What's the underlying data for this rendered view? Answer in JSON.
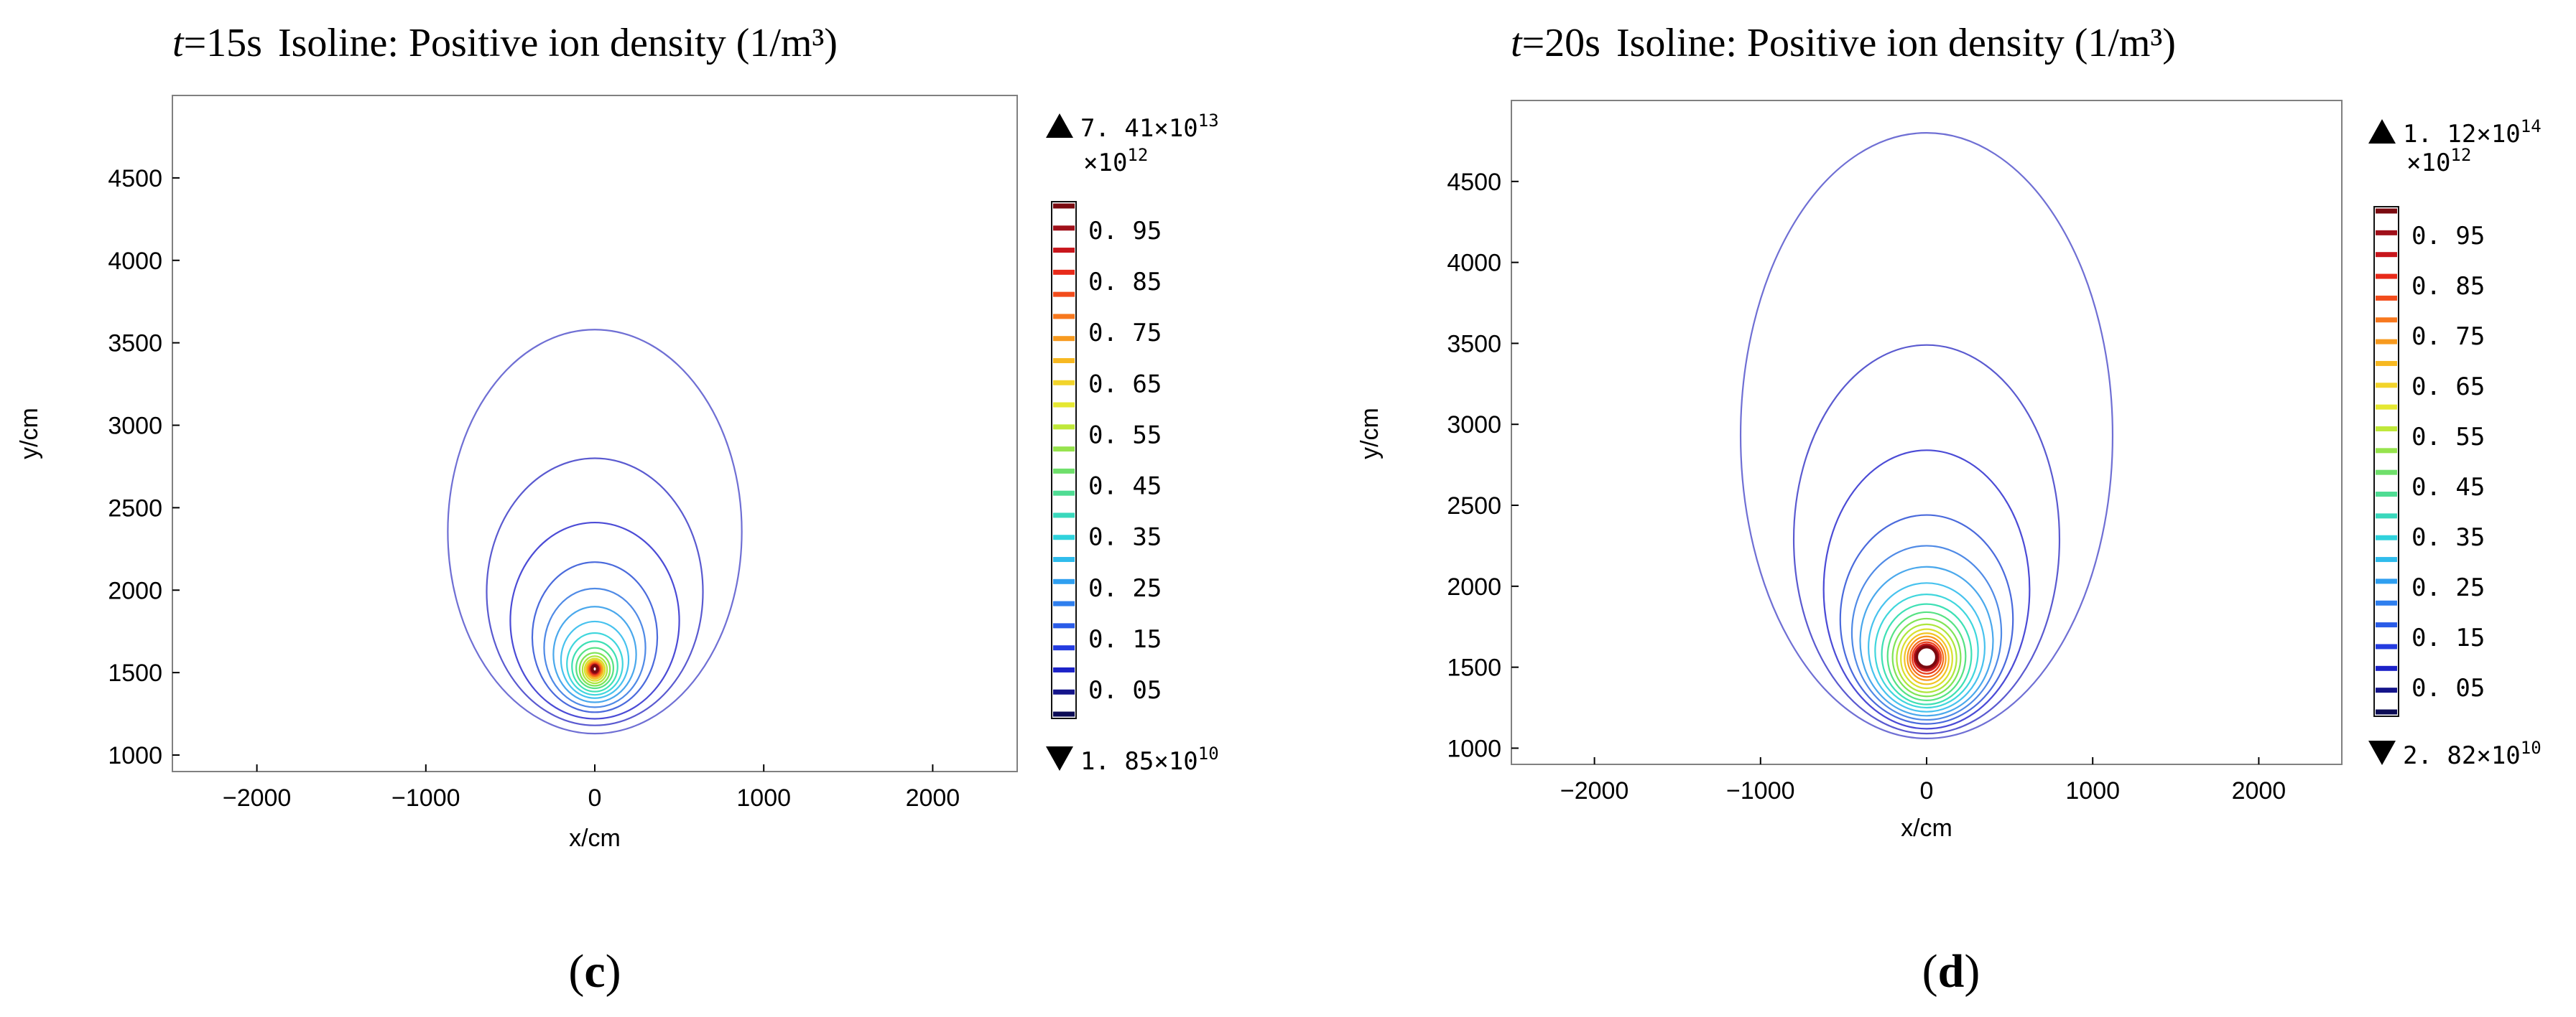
{
  "chart_data": [
    {
      "type": "contour",
      "panel_letter": "c",
      "title": "Isoline: Positive ion density (1/m³)",
      "time_label": "t",
      "time_value": "=15s",
      "xlabel": "x/cm",
      "ylabel": "y/cm",
      "xlim": [
        -2500,
        2500
      ],
      "ylim": [
        900,
        5000
      ],
      "xticks": [
        -2000,
        -1000,
        0,
        1000,
        2000
      ],
      "yticks": [
        1000,
        1500,
        2000,
        2500,
        3000,
        3500,
        4000,
        4500
      ],
      "center": [
        0,
        1530
      ],
      "contours": [
        {
          "a": 870,
          "yb": 1130,
          "yt": 3580,
          "cidx": 0
        },
        {
          "a": 640,
          "yb": 1180,
          "yt": 2800,
          "cidx": 1
        },
        {
          "a": 500,
          "yb": 1220,
          "yt": 2410,
          "cidx": 2
        },
        {
          "a": 370,
          "yb": 1260,
          "yt": 2170,
          "cidx": 3
        },
        {
          "a": 300,
          "yb": 1290,
          "yt": 2010,
          "cidx": 4
        },
        {
          "a": 245,
          "yb": 1320,
          "yt": 1900,
          "cidx": 5
        },
        {
          "a": 200,
          "yb": 1345,
          "yt": 1810,
          "cidx": 6
        },
        {
          "a": 165,
          "yb": 1365,
          "yt": 1740,
          "cidx": 7
        },
        {
          "a": 135,
          "yb": 1385,
          "yt": 1690,
          "cidx": 8
        },
        {
          "a": 110,
          "yb": 1405,
          "yt": 1650,
          "cidx": 9
        },
        {
          "a": 90,
          "yb": 1420,
          "yt": 1620,
          "cidx": 10
        },
        {
          "a": 73,
          "yb": 1435,
          "yt": 1600,
          "cidx": 11
        },
        {
          "a": 60,
          "yb": 1450,
          "yt": 1585,
          "cidx": 12
        },
        {
          "a": 50,
          "yb": 1462,
          "yt": 1575,
          "cidx": 13
        },
        {
          "a": 42,
          "yb": 1472,
          "yt": 1567,
          "cidx": 14
        },
        {
          "a": 35,
          "yb": 1480,
          "yt": 1560,
          "cidx": 15
        },
        {
          "a": 29,
          "yb": 1487,
          "yt": 1554,
          "cidx": 16
        },
        {
          "a": 24,
          "yb": 1493,
          "yt": 1549,
          "cidx": 17
        },
        {
          "a": 19,
          "yb": 1499,
          "yt": 1545,
          "cidx": 18
        },
        {
          "a": 15,
          "yb": 1504,
          "yt": 1541,
          "cidx": 19
        }
      ],
      "colorbar": {
        "max_label": "7. 41",
        "max_exp": "13",
        "min_label": "1. 85",
        "min_exp": "10",
        "scale_prefix": "10",
        "scale_exp": "12",
        "times_sign": "×",
        "labels": [
          "0. 95",
          "0. 85",
          "0. 75",
          "0. 65",
          "0. 55",
          "0. 45",
          "0. 35",
          "0. 25",
          "0. 15",
          "0. 05"
        ]
      }
    },
    {
      "type": "contour",
      "panel_letter": "d",
      "title": "Isoline: Positive ion density (1/m³)",
      "time_label": "t",
      "time_value": "=20s",
      "xlabel": "x/cm",
      "ylabel": "y/cm",
      "xlim": [
        -2500,
        2500
      ],
      "ylim": [
        900,
        5000
      ],
      "xticks": [
        -2000,
        -1000,
        0,
        1000,
        2000
      ],
      "yticks": [
        1000,
        1500,
        2000,
        2500,
        3000,
        3500,
        4000,
        4500
      ],
      "center": [
        0,
        1560
      ],
      "contours": [
        {
          "a": 1120,
          "yb": 1060,
          "yt": 4800,
          "cidx": 0
        },
        {
          "a": 800,
          "yb": 1090,
          "yt": 3490,
          "cidx": 1
        },
        {
          "a": 620,
          "yb": 1120,
          "yt": 2840,
          "cidx": 2
        },
        {
          "a": 520,
          "yb": 1150,
          "yt": 2440,
          "cidx": 3
        },
        {
          "a": 450,
          "yb": 1175,
          "yt": 2250,
          "cidx": 4
        },
        {
          "a": 400,
          "yb": 1200,
          "yt": 2120,
          "cidx": 5
        },
        {
          "a": 350,
          "yb": 1225,
          "yt": 2020,
          "cidx": 6
        },
        {
          "a": 310,
          "yb": 1250,
          "yt": 1950,
          "cidx": 7
        },
        {
          "a": 270,
          "yb": 1270,
          "yt": 1890,
          "cidx": 8
        },
        {
          "a": 235,
          "yb": 1295,
          "yt": 1840,
          "cidx": 9
        },
        {
          "a": 205,
          "yb": 1320,
          "yt": 1800,
          "cidx": 10
        },
        {
          "a": 180,
          "yb": 1345,
          "yt": 1765,
          "cidx": 11
        },
        {
          "a": 155,
          "yb": 1370,
          "yt": 1735,
          "cidx": 12
        },
        {
          "a": 133,
          "yb": 1395,
          "yt": 1710,
          "cidx": 13
        },
        {
          "a": 115,
          "yb": 1420,
          "yt": 1690,
          "cidx": 14
        },
        {
          "a": 100,
          "yb": 1440,
          "yt": 1670,
          "cidx": 15
        },
        {
          "a": 87,
          "yb": 1460,
          "yt": 1655,
          "cidx": 16
        },
        {
          "a": 76,
          "yb": 1477,
          "yt": 1643,
          "cidx": 17
        },
        {
          "a": 67,
          "yb": 1490,
          "yt": 1633,
          "cidx": 18
        },
        {
          "a": 60,
          "yb": 1500,
          "yt": 1625,
          "cidx": 19
        }
      ],
      "colorbar": {
        "max_label": "1. 12",
        "max_exp": "14",
        "min_label": "2. 82",
        "min_exp": "10",
        "scale_prefix": "10",
        "scale_exp": "12",
        "times_sign": "×",
        "labels": [
          "0. 95",
          "0. 85",
          "0. 75",
          "0. 65",
          "0. 55",
          "0. 45",
          "0. 35",
          "0. 25",
          "0. 15",
          "0. 05"
        ]
      }
    }
  ],
  "colors": {
    "contour_palette": [
      "#6f6fd4",
      "#5a5ad0",
      "#4b4bd6",
      "#4a6adc",
      "#4f8ae6",
      "#4aa8ec",
      "#47c2ee",
      "#3fd6dc",
      "#3ee0b4",
      "#56e283",
      "#7fe457",
      "#aee63c",
      "#d9e02e",
      "#f2c423",
      "#f79a1f",
      "#f46b1e",
      "#ea401d",
      "#d51f1c",
      "#b0121a",
      "#7a0a10"
    ],
    "colorbar_segments": [
      "#7a0a10",
      "#a0101a",
      "#c8161c",
      "#e82a1a",
      "#f24c1c",
      "#f7781e",
      "#f79a1f",
      "#f7b821",
      "#f2d42b",
      "#e5e832",
      "#bfe83a",
      "#96e34d",
      "#6fdf6b",
      "#4fdc93",
      "#3ad8bc",
      "#2fd2dc",
      "#2fbcec",
      "#2f9ff0",
      "#2f7fee",
      "#2a5ce8",
      "#243ce0",
      "#1c22c8",
      "#14148a",
      "#0b0b55"
    ],
    "axis": "#000000",
    "frame": "#555555"
  },
  "icons": {
    "max_marker": "up-triangle-icon",
    "min_marker": "down-triangle-icon"
  }
}
